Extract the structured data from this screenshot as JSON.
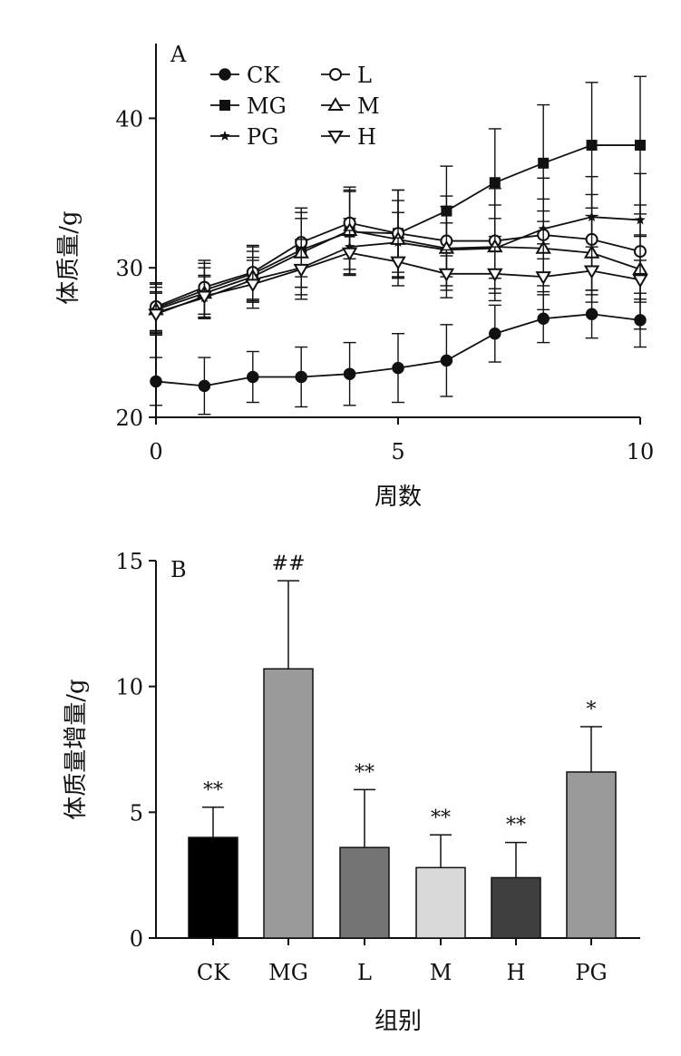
{
  "colors": {
    "axis": "#111111",
    "line": "#111111",
    "bars": [
      "#000000",
      "#9a9a9a",
      "#747474",
      "#d9d9d9",
      "#3f3f3f",
      "#9a9a9a"
    ]
  },
  "chart_data": [
    {
      "type": "line",
      "panel_label": "A",
      "xlabel": "周数",
      "ylabel": "体质量/g",
      "xlim": [
        0,
        10
      ],
      "ylim": [
        20,
        45
      ],
      "xticks": [
        0,
        5,
        10
      ],
      "yticks": [
        20,
        30,
        40
      ],
      "grid": false,
      "legend_position": "top-left",
      "x": [
        0,
        1,
        2,
        3,
        4,
        5,
        6,
        7,
        8,
        9,
        10
      ],
      "series": [
        {
          "name": "CK",
          "marker": "circle-filled",
          "values": [
            22.4,
            22.1,
            22.7,
            22.7,
            22.9,
            23.3,
            23.8,
            25.6,
            26.6,
            26.9,
            26.5
          ],
          "errors": [
            1.6,
            1.9,
            1.7,
            2.0,
            2.1,
            2.3,
            2.4,
            1.9,
            1.6,
            1.6,
            1.8
          ]
        },
        {
          "name": "MG",
          "marker": "square-filled",
          "values": [
            27.3,
            28.5,
            29.6,
            31.2,
            32.4,
            32.3,
            33.8,
            35.7,
            37.0,
            38.2,
            38.2
          ],
          "errors": [
            1.6,
            1.8,
            1.8,
            2.5,
            2.8,
            2.9,
            3.0,
            3.6,
            3.9,
            4.2,
            4.6
          ]
        },
        {
          "name": "PG",
          "marker": "star",
          "values": [
            27.0,
            28.0,
            29.2,
            30.0,
            31.4,
            31.7,
            31.2,
            31.3,
            32.6,
            33.4,
            33.2
          ],
          "errors": [
            1.4,
            1.4,
            1.5,
            1.8,
            1.9,
            2.0,
            1.8,
            2.0,
            2.0,
            1.5,
            1.0
          ]
        },
        {
          "name": "L",
          "marker": "circle-open",
          "values": [
            27.4,
            28.7,
            29.7,
            31.7,
            33.0,
            32.3,
            31.8,
            31.8,
            32.2,
            31.9,
            31.1
          ],
          "errors": [
            1.6,
            1.8,
            1.8,
            2.3,
            2.4,
            2.9,
            3.0,
            3.5,
            3.8,
            4.2,
            5.2
          ]
        },
        {
          "name": "M",
          "marker": "triangle-open",
          "values": [
            27.2,
            28.3,
            29.4,
            31.0,
            32.5,
            31.9,
            31.3,
            31.4,
            31.3,
            31.0,
            29.9
          ],
          "errors": [
            1.5,
            1.7,
            1.7,
            2.3,
            2.6,
            2.6,
            2.8,
            2.8,
            2.5,
            2.5,
            2.2
          ]
        },
        {
          "name": "H",
          "marker": "triangle-down-open",
          "values": [
            26.9,
            28.1,
            28.9,
            29.9,
            31.0,
            30.4,
            29.6,
            29.6,
            29.4,
            29.8,
            29.2
          ],
          "errors": [
            1.4,
            1.4,
            1.6,
            2.0,
            1.5,
            1.6,
            1.6,
            1.8,
            2.2,
            1.6,
            1.3
          ]
        }
      ],
      "legend_layout": [
        [
          "CK",
          "L"
        ],
        [
          "MG",
          "M"
        ],
        [
          "PG",
          "H"
        ]
      ]
    },
    {
      "type": "bar",
      "panel_label": "B",
      "xlabel": "组别",
      "ylabel": "体质量增量/g",
      "ylim": [
        0,
        15
      ],
      "yticks": [
        0,
        5,
        10,
        15
      ],
      "grid": false,
      "categories": [
        "CK",
        "MG",
        "L",
        "M",
        "H",
        "PG"
      ],
      "values": [
        4.0,
        10.7,
        3.6,
        2.8,
        2.4,
        6.6
      ],
      "errors": [
        1.2,
        3.5,
        2.3,
        1.3,
        1.4,
        1.8
      ],
      "annotations": [
        "**",
        "##",
        "**",
        "**",
        "**",
        "*"
      ]
    }
  ]
}
